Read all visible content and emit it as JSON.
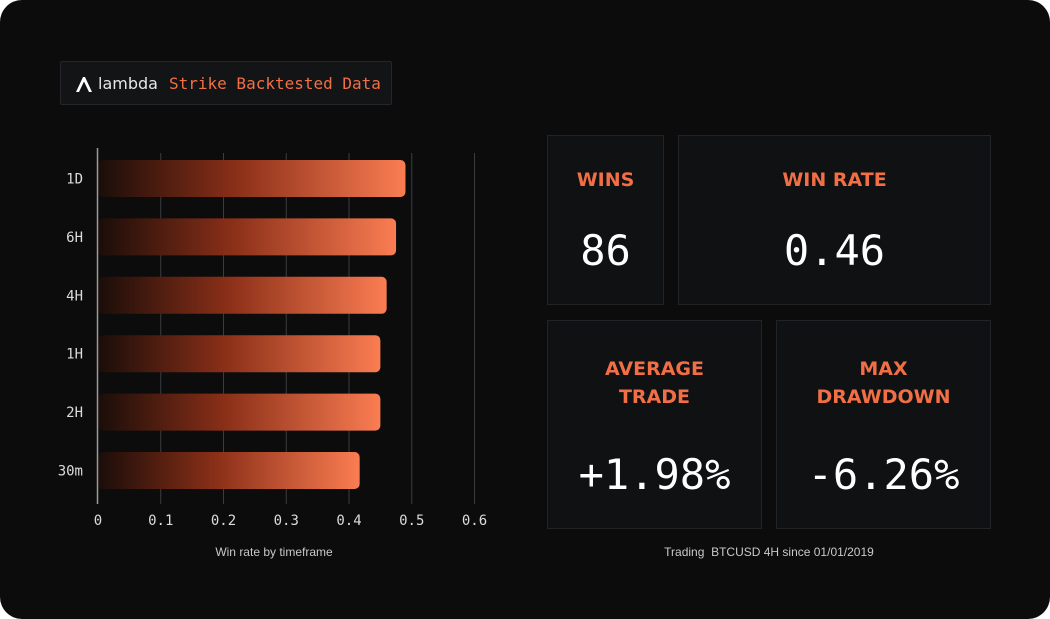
{
  "brand": {
    "name": "lambda",
    "tagline": "Strike Backtested Data"
  },
  "chart_data": {
    "type": "bar",
    "orientation": "horizontal",
    "categories": [
      "1D",
      "6H",
      "4H",
      "1H",
      "2H",
      "30m"
    ],
    "values": [
      0.49,
      0.475,
      0.46,
      0.45,
      0.45,
      0.417
    ],
    "xticks": [
      "0",
      "0.1",
      "0.2",
      "0.3",
      "0.4",
      "0.5",
      "0.6"
    ],
    "xlim": [
      0,
      0.6
    ],
    "xlabel": "Win rate by timeframe",
    "grid": "vertical",
    "bar_color_start": "#1a0d09",
    "bar_color_end": "#fb7d52"
  },
  "stats": {
    "wins": {
      "label": "WINS",
      "value": "86"
    },
    "win_rate": {
      "label": "WIN RATE",
      "value": "0.46"
    },
    "average_trade": {
      "label": "AVERAGE\nTRADE",
      "value": "+1.98%"
    },
    "max_drawdown": {
      "label": "MAX\nDRAWDOWN",
      "value": "-6.26%"
    }
  },
  "stats_caption": "Trading  BTCUSD 4H since 01/01/2019",
  "colors": {
    "accent": "#f26f46",
    "background": "#0c0c0d"
  }
}
